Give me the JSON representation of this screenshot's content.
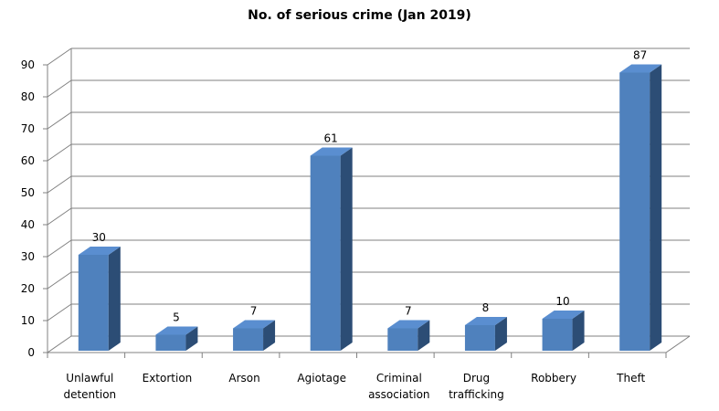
{
  "chart_data": {
    "type": "bar",
    "title": "No. of serious crime (Jan 2019)",
    "categories": [
      [
        "Unlawful",
        "detention"
      ],
      [
        "Extortion"
      ],
      [
        "Arson"
      ],
      [
        "Agiotage"
      ],
      [
        "Criminal",
        "association"
      ],
      [
        "Drug",
        "trafficking"
      ],
      [
        "Robbery"
      ],
      [
        "Theft"
      ]
    ],
    "values": [
      30,
      5,
      7,
      61,
      7,
      8,
      10,
      87
    ],
    "ylim": [
      0,
      90
    ],
    "yticks": [
      0,
      10,
      20,
      30,
      40,
      50,
      60,
      70,
      80,
      90
    ],
    "xlabel": "",
    "ylabel": "",
    "grid": true,
    "legend": "none",
    "style": "3d-column",
    "colors": {
      "bar_front": "#4f81bd",
      "bar_side": "#2c4d75",
      "bar_top": "#5a8ed0",
      "grid": "#808080"
    }
  }
}
